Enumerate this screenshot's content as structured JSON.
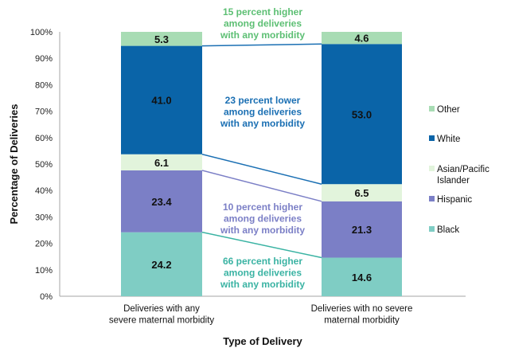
{
  "chart_data": {
    "type": "bar",
    "stacked": true,
    "xlabel": "Type of Delivery",
    "ylabel": "Percentage of Deliveries",
    "ylim": [
      0,
      100
    ],
    "yticks": [
      "0%",
      "10%",
      "20%",
      "30%",
      "40%",
      "50%",
      "60%",
      "70%",
      "80%",
      "90%",
      "100%"
    ],
    "categories": [
      [
        "Deliveries with any",
        "severe maternal morbidity"
      ],
      [
        "Deliveries with no severe",
        "maternal morbidity"
      ]
    ],
    "series": [
      {
        "name": "Black",
        "color": "#7fcdc4",
        "values": [
          24.2,
          14.6
        ],
        "labels": [
          "24.2",
          "14.6"
        ]
      },
      {
        "name": "Hispanic",
        "color": "#7b7fc6",
        "values": [
          23.4,
          21.3
        ],
        "labels": [
          "23.4",
          "21.3"
        ]
      },
      {
        "name": "Asian/Pacific Islander",
        "legend_lines": [
          "Asian/Pacific",
          "Islander"
        ],
        "color": "#e2f4dc",
        "values": [
          6.1,
          6.5
        ],
        "labels": [
          "6.1",
          "6.5"
        ]
      },
      {
        "name": "White",
        "color": "#0a64a8",
        "values": [
          41.0,
          53.0
        ],
        "labels": [
          "41.0",
          "53.0"
        ]
      },
      {
        "name": "Other",
        "color": "#a8dcb4",
        "values": [
          5.3,
          4.6
        ],
        "labels": [
          "5.3",
          "4.6"
        ]
      }
    ],
    "legend_order": [
      "Other",
      "White",
      "Asian/Pacific Islander",
      "Hispanic",
      "Black"
    ],
    "legend": "right",
    "grid": false,
    "annotations": [
      {
        "lines": [
          "15 percent higher",
          "among deliveries",
          "with any morbidity"
        ],
        "color": "#5cbf73",
        "series": "Other"
      },
      {
        "lines": [
          "23 percent lower",
          "among deliveries",
          "with any morbidity"
        ],
        "color": "#1a6fb3",
        "series": "White"
      },
      {
        "lines": [
          "10 percent higher",
          "among deliveries",
          "with any morbidity"
        ],
        "color": "#7b7fc6",
        "series": "Hispanic"
      },
      {
        "lines": [
          "66 percent higher",
          "among deliveries",
          "with any morbidity"
        ],
        "color": "#3ab3a3",
        "series": "Black"
      }
    ]
  }
}
